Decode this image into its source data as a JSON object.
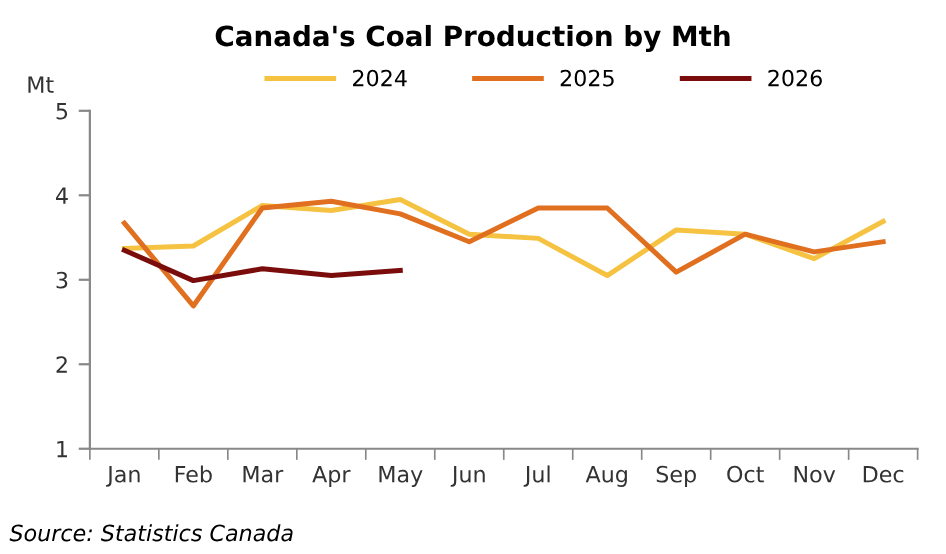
{
  "chart_data": {
    "type": "line",
    "title": "Canada's Coal Production by Mth",
    "ylabel": "Mt",
    "categories": [
      "Jan",
      "Feb",
      "Mar",
      "Apr",
      "May",
      "Jun",
      "Jul",
      "Aug",
      "Sep",
      "Oct",
      "Nov",
      "Dec"
    ],
    "series": [
      {
        "name": "2024",
        "color": "#f5c242",
        "values": [
          3.37,
          3.4,
          3.88,
          3.82,
          3.95,
          3.54,
          3.49,
          3.05,
          3.59,
          3.54,
          3.25,
          3.69
        ]
      },
      {
        "name": "2025",
        "color": "#e07020",
        "values": [
          3.67,
          2.69,
          3.85,
          3.93,
          3.78,
          3.45,
          3.85,
          3.85,
          3.09,
          3.54,
          3.33,
          3.45
        ]
      },
      {
        "name": "2026",
        "color": "#7b0c0c",
        "values": [
          3.35,
          2.99,
          3.13,
          3.05,
          3.11,
          null,
          null,
          null,
          null,
          null,
          null,
          null
        ]
      }
    ],
    "ylim": [
      1,
      5
    ],
    "yticks": [
      1,
      2,
      3,
      4,
      5
    ],
    "grid": false,
    "legend": "top",
    "marker": "none",
    "line_style": "solid",
    "annotations": [
      "Source: Statistics Canada"
    ]
  }
}
